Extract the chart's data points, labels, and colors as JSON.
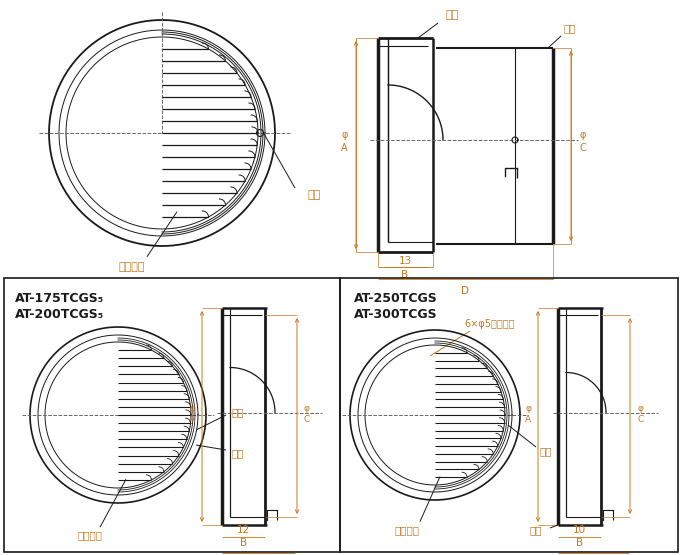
{
  "bg_color": "#ffffff",
  "line_color": "#1a1a1a",
  "label_color": "#c87820",
  "text_color": "#1a1a1a",
  "title1_line1": "AT-175TCGS₅",
  "title1_line2": "AT-200TCGS₅",
  "title2_line1": "AT-250TCGS",
  "title2_line2": "AT-300TCGS",
  "label_neji": "ネジ",
  "label_drain": "ドレン穴",
  "label_phi_a": "Φ A",
  "label_phi_c": "Φ C",
  "label_b": "B",
  "label_d": "D",
  "label_13": "13",
  "label_12": "12",
  "label_10": "10",
  "label_mounting": "6×φ5据付用穴",
  "centerline_color": "#666666",
  "dim_color": "#c87820"
}
